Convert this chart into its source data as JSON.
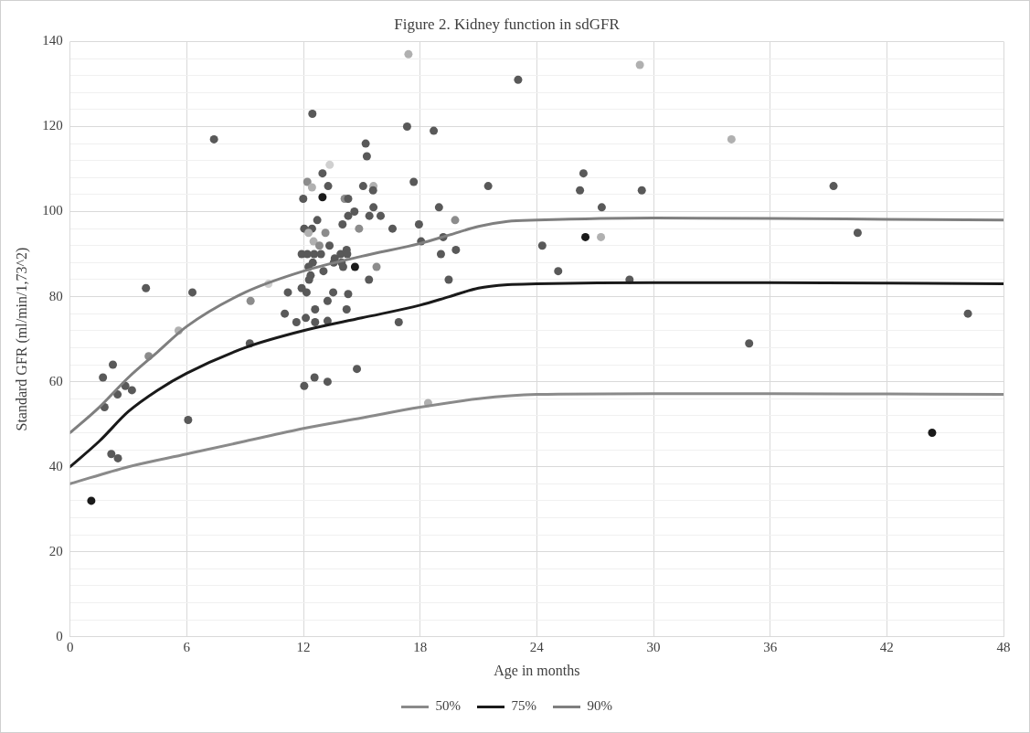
{
  "chart_data": {
    "type": "scatter",
    "title": "Figure 2. Kidney function in sdGFR",
    "xlabel": "Age in months",
    "ylabel": "Standard GFR (ml/min/1,73^2)",
    "xlim": [
      0,
      48
    ],
    "xticks": [
      0,
      6,
      12,
      18,
      24,
      30,
      36,
      42,
      48
    ],
    "ylim": [
      0,
      140
    ],
    "yticks": [
      0,
      {
        "value": 4,
        "label": null
      },
      {
        "value": 8,
        "label": null
      },
      {
        "value": 12,
        "label": null
      },
      {
        "value": 16,
        "label": null
      },
      20,
      {
        "value": 24,
        "label": null
      },
      {
        "value": 28,
        "label": null
      },
      {
        "value": 32,
        "label": null
      },
      {
        "value": 36,
        "label": null
      },
      40,
      {
        "value": 44,
        "label": null
      },
      {
        "value": 48,
        "label": null
      },
      {
        "value": 52,
        "label": null
      },
      {
        "value": 56,
        "label": null
      },
      60,
      {
        "value": 64,
        "label": null
      },
      {
        "value": 68,
        "label": null
      },
      {
        "value": 72,
        "label": null
      },
      {
        "value": 76,
        "label": null
      },
      80,
      {
        "value": 84,
        "label": null
      },
      {
        "value": 88,
        "label": null
      },
      {
        "value": 92,
        "label": null
      },
      {
        "value": 96,
        "label": null
      },
      100,
      {
        "value": 104,
        "label": null
      },
      {
        "value": 108,
        "label": null
      },
      {
        "value": 112,
        "label": null
      },
      {
        "value": 116,
        "label": null
      },
      120,
      {
        "value": 124,
        "label": null
      },
      {
        "value": 128,
        "label": null
      },
      {
        "value": 132,
        "label": null
      },
      {
        "value": 136,
        "label": null
      },
      140
    ],
    "grid": true,
    "legend": "bottom",
    "series": [
      {
        "name": "50%",
        "type": "line",
        "marker": "none",
        "color": "#8a8a8a",
        "x": [
          0,
          3,
          6,
          9,
          12,
          15,
          18,
          21,
          24,
          30,
          36,
          42,
          48
        ],
        "values": [
          36,
          40,
          43,
          46,
          49,
          51.5,
          54,
          56,
          57,
          57.2,
          57.2,
          57.1,
          57
        ]
      },
      {
        "name": "75%",
        "type": "line",
        "marker": "none",
        "color": "#1a1a1a",
        "x": [
          0,
          1.5,
          3,
          4.5,
          6,
          9,
          12,
          15,
          18,
          19.5,
          21,
          22.5,
          24,
          30,
          36,
          42,
          48
        ],
        "values": [
          40,
          46,
          53,
          58,
          62,
          68,
          72,
          75,
          78,
          80,
          82,
          82.8,
          83,
          83.3,
          83.3,
          83.2,
          83
        ]
      },
      {
        "name": "90%",
        "type": "line",
        "marker": "none",
        "color": "#7f7f7f",
        "x": [
          0,
          1.5,
          3,
          4.5,
          6,
          9,
          12,
          15,
          18,
          19.5,
          21,
          22.5,
          24,
          30,
          36,
          42,
          48
        ],
        "values": [
          48,
          54,
          61,
          67,
          73,
          81,
          86,
          89.5,
          92.5,
          94.5,
          96.5,
          97.7,
          98,
          98.5,
          98.4,
          98.2,
          98
        ]
      },
      {
        "type": "scatter",
        "marker": "circle",
        "color": "#595959",
        "x": [
          1.09,
          1.69,
          2.2,
          1.77,
          2.44,
          2.84,
          3.18,
          2.12,
          2.46,
          3.9,
          6.29,
          6.07,
          4.04,
          5.58,
          9.28,
          9.24,
          7.4,
          10.2,
          17.4,
          12.46,
          17.33,
          18.7,
          15.2,
          15.26,
          13.35,
          12.98,
          12.2,
          12.44,
          13.27,
          15.07,
          15.6,
          15.58,
          17.67,
          21.5,
          11.99,
          12.98,
          14.12,
          14.3,
          18.97,
          15.6,
          14.62,
          14.3,
          15.39,
          15.97,
          12.71,
          19.8,
          17.94,
          14.01,
          12.04,
          12.44,
          14.86,
          16.58,
          12.26,
          13.13,
          12.52,
          12.82,
          13.34,
          18.05,
          19.19,
          11.91,
          12.2,
          12.55,
          12.9,
          13.61,
          13.91,
          14.22,
          14.25,
          19.07,
          19.84,
          12.48,
          13.56,
          13.96,
          12.26,
          14.04,
          14.65,
          15.76,
          13.03,
          12.37,
          12.29,
          15.37,
          19.47,
          11.91,
          12.16,
          11.2,
          13.53,
          14.3,
          13.24,
          12.6,
          14.22,
          11.04,
          12.12,
          11.64,
          12.6,
          13.24,
          16.9,
          14.75,
          12.04,
          12.57,
          13.24,
          18.41,
          23.04,
          29.3,
          26.4,
          26.22,
          29.4,
          27.34,
          34.01,
          39.26,
          24.28,
          26.5,
          27.3,
          40.5,
          25.1,
          28.77,
          46.17,
          34.92,
          44.33
        ],
        "values": [
          32,
          61,
          64,
          54,
          57,
          59,
          58,
          43,
          42,
          82,
          81,
          51,
          66,
          72,
          79,
          69,
          117,
          83,
          137,
          123,
          120,
          119,
          116,
          113,
          111,
          109,
          107,
          105.7,
          106,
          106,
          106,
          105,
          107,
          106,
          103,
          103.4,
          103,
          103,
          101,
          101,
          100,
          99,
          99,
          99,
          98,
          98,
          97,
          97,
          96,
          96,
          96,
          96,
          95,
          95,
          93,
          92,
          92,
          93,
          94,
          90,
          90,
          90,
          90,
          89,
          90,
          91,
          90,
          90,
          91,
          88,
          88,
          88,
          87,
          87,
          87,
          87,
          86,
          85,
          84,
          84,
          84,
          82,
          81,
          81,
          81,
          80.6,
          79,
          77,
          77,
          76,
          75,
          74,
          74,
          74.3,
          74,
          63,
          59,
          61,
          60,
          55,
          131,
          134.5,
          109,
          105,
          105,
          101,
          117,
          106,
          92,
          94,
          94,
          95,
          86,
          84,
          76,
          69,
          48
        ],
        "colors": [
          "#1a1a1a",
          "#595959",
          "#595959",
          "#595959",
          "#595959",
          "#595959",
          "#595959",
          "#595959",
          "#595959",
          "#595959",
          "#595959",
          "#595959",
          "#8c8c8c",
          "#b0b0b0",
          "#8c8c8c",
          "#595959",
          "#595959",
          "#d0d0d0",
          "#b0b0b0",
          "#595959",
          "#595959",
          "#595959",
          "#595959",
          "#595959",
          "#d0d0d0",
          "#595959",
          "#8c8c8c",
          "#b0b0b0",
          "#595959",
          "#595959",
          "#b0b0b0",
          "#595959",
          "#595959",
          "#595959",
          "#595959",
          "#1a1a1a",
          "#8c8c8c",
          "#595959",
          "#595959",
          "#595959",
          "#595959",
          "#595959",
          "#595959",
          "#595959",
          "#595959",
          "#8c8c8c",
          "#595959",
          "#595959",
          "#595959",
          "#595959",
          "#8c8c8c",
          "#595959",
          "#b0b0b0",
          "#8c8c8c",
          "#b0b0b0",
          "#8c8c8c",
          "#595959",
          "#595959",
          "#595959",
          "#595959",
          "#595959",
          "#595959",
          "#595959",
          "#595959",
          "#595959",
          "#595959",
          "#595959",
          "#595959",
          "#595959",
          "#595959",
          "#595959",
          "#595959",
          "#595959",
          "#595959",
          "#1a1a1a",
          "#8c8c8c",
          "#595959",
          "#595959",
          "#595959",
          "#595959",
          "#595959",
          "#595959",
          "#595959",
          "#595959",
          "#595959",
          "#595959",
          "#595959",
          "#595959",
          "#595959",
          "#595959",
          "#595959",
          "#595959",
          "#595959",
          "#595959",
          "#595959",
          "#595959",
          "#595959",
          "#595959",
          "#595959",
          "#b0b0b0",
          "#595959",
          "#b0b0b0",
          "#595959",
          "#595959",
          "#595959",
          "#595959",
          "#b0b0b0",
          "#595959",
          "#595959",
          "#1a1a1a",
          "#b0b0b0",
          "#595959",
          "#595959",
          "#595959",
          "#595959",
          "#595959",
          "#1a1a1a"
        ]
      }
    ]
  }
}
